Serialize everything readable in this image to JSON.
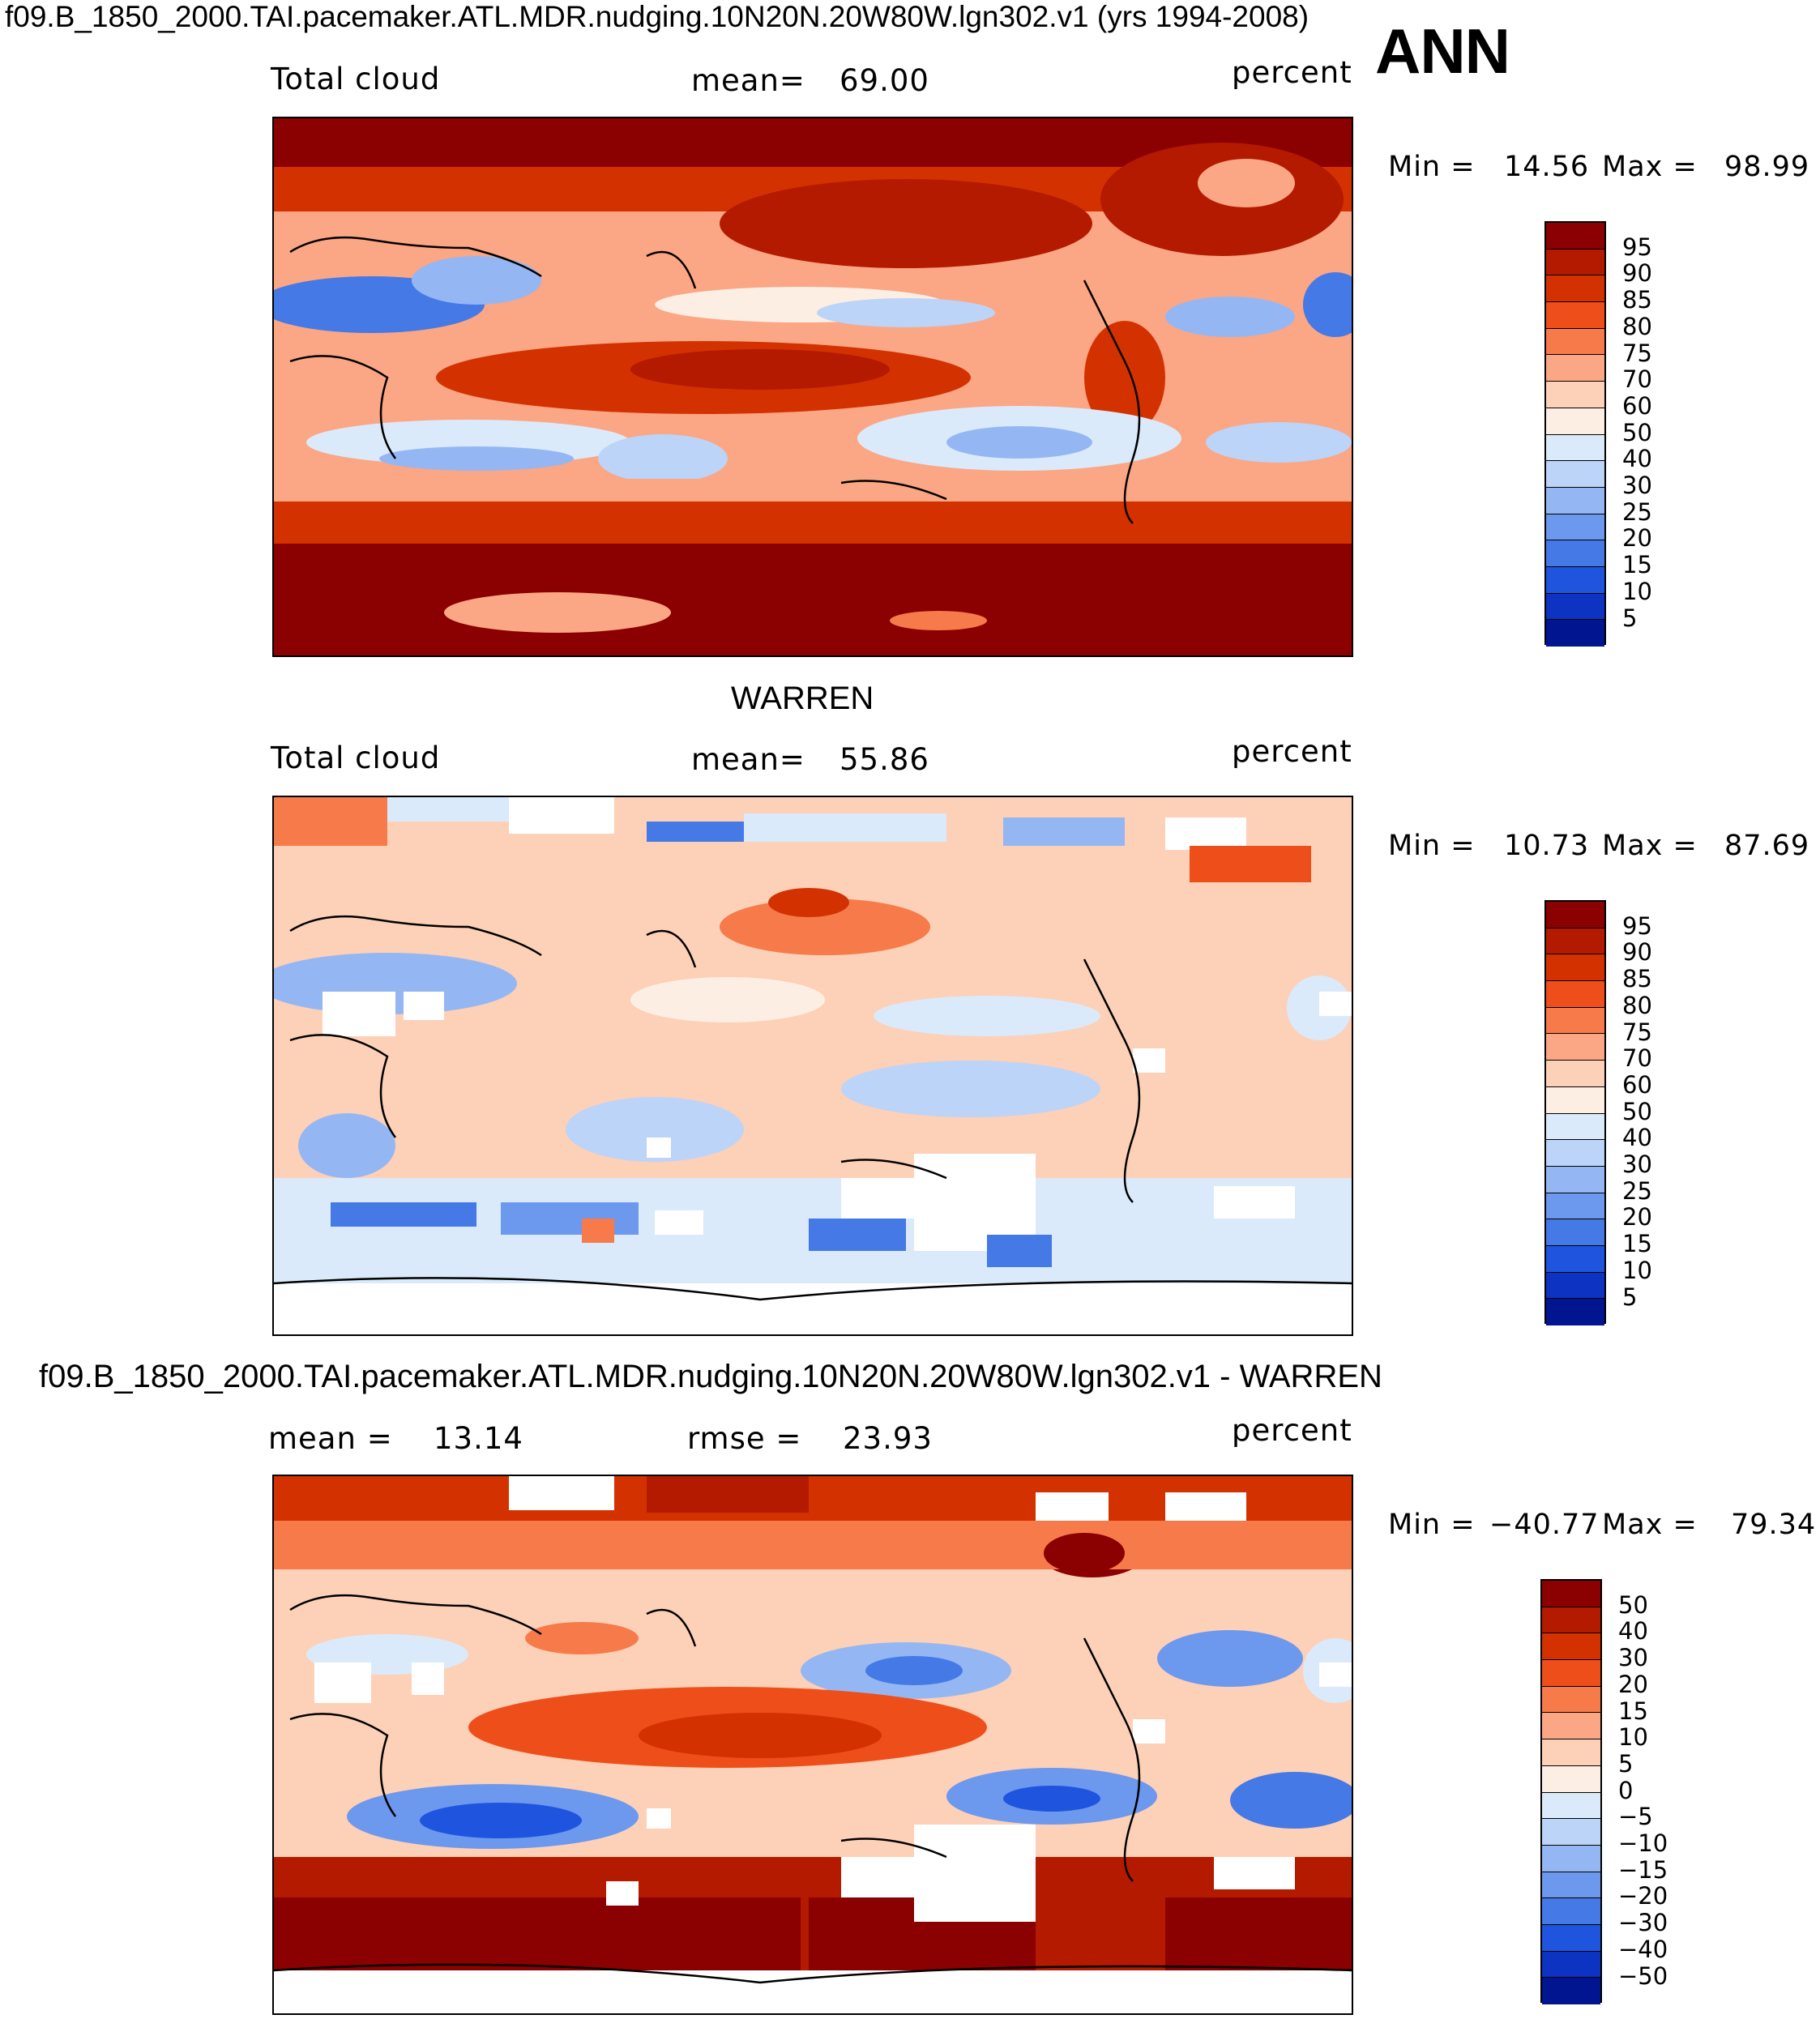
{
  "header": {
    "case_title": "f09.B_1850_2000.TAI.pacemaker.ATL.MDR.nudging.10N20N.20W80W.lgn302.v1 (yrs 1994-2008)",
    "season": "ANN"
  },
  "panels": [
    {
      "title": "",
      "left_label": "Total cloud",
      "mean_label": "mean=",
      "mean_value": "69.00",
      "mid_label": "",
      "mid_value": "",
      "units": "percent",
      "min_label": "Min =",
      "min_value": "14.56",
      "max_label": "Max =",
      "max_value": "98.99",
      "colorbar": {
        "labels": [
          "95",
          "90",
          "85",
          "80",
          "75",
          "70",
          "60",
          "50",
          "40",
          "30",
          "25",
          "20",
          "15",
          "10",
          "5"
        ],
        "colors": [
          "#8b0000",
          "#b41a00",
          "#d33200",
          "#ee4f1a",
          "#f67a4a",
          "#fba684",
          "#fdd0b8",
          "#fdeee4",
          "#dbeafa",
          "#bcd4f7",
          "#94b7f3",
          "#6c98ee",
          "#4479e6",
          "#1f55de",
          "#0c33c1",
          "#00158f"
        ]
      },
      "map_kind": "model"
    },
    {
      "title": "WARREN",
      "left_label": "Total cloud",
      "mean_label": "mean=",
      "mean_value": "55.86",
      "mid_label": "",
      "mid_value": "",
      "units": "percent",
      "min_label": "Min =",
      "min_value": "10.73",
      "max_label": "Max =",
      "max_value": "87.69",
      "colorbar": {
        "labels": [
          "95",
          "90",
          "85",
          "80",
          "75",
          "70",
          "60",
          "50",
          "40",
          "30",
          "25",
          "20",
          "15",
          "10",
          "5"
        ],
        "colors": [
          "#8b0000",
          "#b41a00",
          "#d33200",
          "#ee4f1a",
          "#f67a4a",
          "#fba684",
          "#fdd0b8",
          "#fdeee4",
          "#dbeafa",
          "#bcd4f7",
          "#94b7f3",
          "#6c98ee",
          "#4479e6",
          "#1f55de",
          "#0c33c1",
          "#00158f"
        ]
      },
      "map_kind": "obs"
    },
    {
      "title": "f09.B_1850_2000.TAI.pacemaker.ATL.MDR.nudging.10N20N.20W80W.lgn302.v1 - WARREN",
      "left_label": "mean =",
      "left_value": "13.14",
      "mean_label": "rmse =",
      "mean_value": "23.93",
      "units": "percent",
      "min_label": "Min =",
      "min_value": "−40.77",
      "max_label": "Max =",
      "max_value": "79.34",
      "colorbar": {
        "labels": [
          "50",
          "40",
          "30",
          "20",
          "15",
          "10",
          "5",
          "0",
          "−5",
          "−10",
          "−15",
          "−20",
          "−30",
          "−40",
          "−50"
        ],
        "colors": [
          "#8b0000",
          "#b41a00",
          "#d33200",
          "#ee4f1a",
          "#f67a4a",
          "#fba684",
          "#fdd0b8",
          "#fdeee4",
          "#dbeafa",
          "#bcd4f7",
          "#94b7f3",
          "#6c98ee",
          "#4479e6",
          "#1f55de",
          "#0c33c1",
          "#00158f"
        ]
      },
      "map_kind": "diff"
    }
  ]
}
